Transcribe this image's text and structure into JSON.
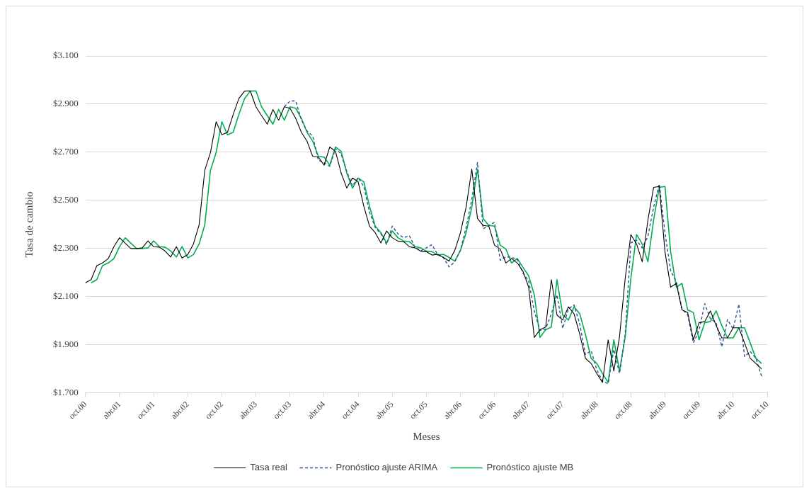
{
  "chart_data": {
    "type": "line",
    "xlabel": "Meses",
    "ylabel": "Tasa de cambio",
    "categories": [
      "oct.00",
      null,
      null,
      null,
      null,
      null,
      "abr.01",
      null,
      null,
      null,
      null,
      null,
      "oct.01",
      null,
      null,
      null,
      null,
      null,
      "abr.02",
      null,
      null,
      null,
      null,
      null,
      "oct.02",
      null,
      null,
      null,
      null,
      null,
      "abr.03",
      null,
      null,
      null,
      null,
      null,
      "oct.03",
      null,
      null,
      null,
      null,
      null,
      "abr.04",
      null,
      null,
      null,
      null,
      null,
      "oct.04",
      null,
      null,
      null,
      null,
      null,
      "abr.05",
      null,
      null,
      null,
      null,
      null,
      "oct.05",
      null,
      null,
      null,
      null,
      null,
      "abr.06",
      null,
      null,
      null,
      null,
      null,
      "oct.06",
      null,
      null,
      null,
      null,
      null,
      "abr.07",
      null,
      null,
      null,
      null,
      null,
      "oct.07",
      null,
      null,
      null,
      null,
      null,
      "abr.08",
      null,
      null,
      null,
      null,
      null,
      "oct.08",
      null,
      null,
      null,
      null,
      null,
      "abr.09",
      null,
      null,
      null,
      null,
      null,
      "oct.09",
      null,
      null,
      null,
      null,
      null,
      "abr.10",
      null,
      null,
      null,
      null,
      null,
      "oct.10"
    ],
    "series": [
      {
        "name": "Tasa real",
        "color": "#000000",
        "line_style": "solid",
        "values": [
          2158,
          2171,
          2229,
          2240,
          2258,
          2308,
          2345,
          2322,
          2300,
          2300,
          2303,
          2332,
          2308,
          2306,
          2290,
          2265,
          2308,
          2261,
          2275,
          2319,
          2398,
          2625,
          2699,
          2827,
          2773,
          2783,
          2857,
          2923,
          2954,
          2955,
          2889,
          2852,
          2817,
          2878,
          2833,
          2889,
          2883,
          2841,
          2783,
          2746,
          2683,
          2680,
          2646,
          2722,
          2704,
          2614,
          2551,
          2593,
          2577,
          2475,
          2393,
          2366,
          2323,
          2373,
          2345,
          2331,
          2329,
          2308,
          2303,
          2289,
          2287,
          2273,
          2276,
          2263,
          2248,
          2292,
          2366,
          2472,
          2630,
          2425,
          2396,
          2393,
          2314,
          2298,
          2240,
          2259,
          2240,
          2206,
          2140,
          1931,
          1963,
          1974,
          2171,
          2024,
          2003,
          2058,
          2029,
          1944,
          1844,
          1823,
          1781,
          1744,
          1921,
          1791,
          1934,
          2177,
          2358,
          2319,
          2245,
          2419,
          2554,
          2558,
          2287,
          2140,
          2155,
          2045,
          2034,
          1921,
          1992,
          1997,
          2041,
          1981,
          1929,
          1929,
          1971,
          1971,
          1908,
          1844,
          1823,
          1800,
          null
        ]
      },
      {
        "name": "Pronóstico ajuste ARIMA",
        "color": "#2f5597",
        "line_style": "dashed",
        "values": [
          null,
          null,
          null,
          null,
          null,
          null,
          null,
          null,
          null,
          null,
          null,
          null,
          null,
          null,
          null,
          null,
          null,
          null,
          null,
          null,
          null,
          null,
          null,
          null,
          null,
          null,
          null,
          null,
          null,
          null,
          null,
          null,
          null,
          null,
          null,
          2889,
          2913,
          2913,
          2835,
          2788,
          2767,
          2667,
          2657,
          2641,
          2715,
          2693,
          2620,
          2560,
          2595,
          2556,
          2451,
          2388,
          2361,
          2317,
          2393,
          2361,
          2345,
          2354,
          2306,
          2290,
          2303,
          2316,
          2274,
          2263,
          2224,
          2245,
          2293,
          2388,
          2504,
          2657,
          2382,
          2396,
          2409,
          2251,
          2266,
          2263,
          2256,
          2198,
          2166,
          2040,
          1960,
          1966,
          2029,
          2108,
          1968,
          2050,
          2066,
          1987,
          1860,
          1876,
          1797,
          1749,
          1739,
          1881,
          1781,
          1944,
          2324,
          2335,
          2303,
          2351,
          2472,
          2569,
          2366,
          2208,
          2161,
          2050,
          2024,
          1908,
          1960,
          2071,
          2008,
          1992,
          1892,
          2005,
          1966,
          2069,
          1851,
          1872,
          1844,
          1770,
          null
        ]
      },
      {
        "name": "Pronóstico ajuste MB",
        "color": "#00b050",
        "line_style": "solid",
        "values": [
          null,
          2158,
          2171,
          2229,
          2240,
          2258,
          2308,
          2345,
          2322,
          2300,
          2300,
          2303,
          2332,
          2308,
          2306,
          2290,
          2265,
          2308,
          2261,
          2275,
          2319,
          2398,
          2625,
          2699,
          2827,
          2773,
          2783,
          2857,
          2923,
          2954,
          2955,
          2889,
          2852,
          2817,
          2878,
          2833,
          2889,
          2883,
          2841,
          2783,
          2746,
          2683,
          2680,
          2646,
          2722,
          2704,
          2614,
          2551,
          2593,
          2577,
          2475,
          2393,
          2366,
          2323,
          2373,
          2345,
          2331,
          2329,
          2308,
          2303,
          2289,
          2287,
          2273,
          2276,
          2263,
          2248,
          2292,
          2366,
          2472,
          2630,
          2425,
          2396,
          2393,
          2314,
          2298,
          2240,
          2259,
          2222,
          2187,
          2108,
          1931,
          1963,
          1974,
          2171,
          2024,
          2003,
          2058,
          2029,
          1944,
          1844,
          1823,
          1781,
          1744,
          1921,
          1791,
          1934,
          2177,
          2358,
          2319,
          2245,
          2419,
          2554,
          2558,
          2287,
          2140,
          2155,
          2045,
          2034,
          1921,
          1992,
          1997,
          2041,
          1981,
          1929,
          1929,
          1971,
          1971,
          1908,
          1844,
          1823,
          null
        ]
      }
    ],
    "ylim": [
      1700,
      3100
    ],
    "yticks": [
      {
        "value": 1700,
        "label": "$1.700"
      },
      {
        "value": 1900,
        "label": "$1.900"
      },
      {
        "value": 2100,
        "label": "$2.100"
      },
      {
        "value": 2300,
        "label": "$2.300"
      },
      {
        "value": 2500,
        "label": "$2.500"
      },
      {
        "value": 2700,
        "label": "$2.700"
      },
      {
        "value": 2900,
        "label": "$2.900"
      },
      {
        "value": 3100,
        "label": "$3.100"
      }
    ],
    "grid": "y",
    "legend": "bottom",
    "marker": "none"
  }
}
